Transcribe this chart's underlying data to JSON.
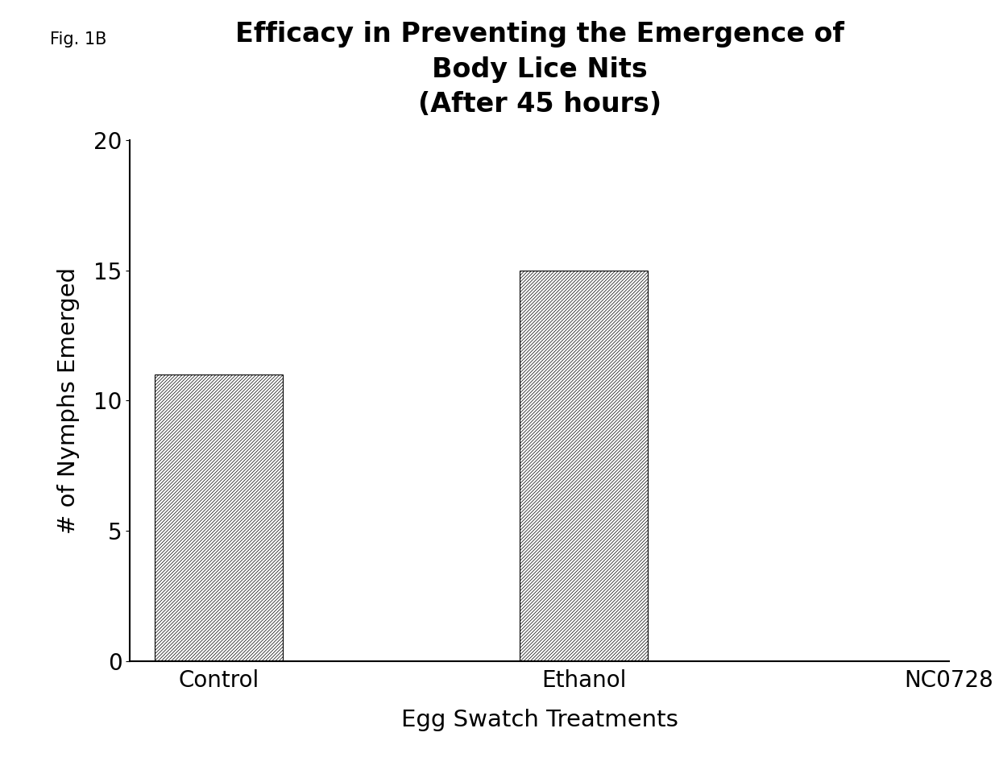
{
  "title_line1": "Efficacy in Preventing the Emergence of",
  "title_line2": "Body Lice Nits",
  "title_line3": "(After 45 hours)",
  "xlabel": "Egg Swatch Treatments",
  "ylabel": "# of Nymphs Emerged",
  "categories": [
    "Control",
    "Ethanol",
    "NC0728"
  ],
  "values": [
    11,
    15,
    0
  ],
  "ylim": [
    0,
    20
  ],
  "yticks": [
    0,
    5,
    10,
    15,
    20
  ],
  "bar_color": "#ffffff",
  "hatch_pattern": "////////",
  "bar_width": 0.35,
  "fig_label": "Fig. 1B",
  "background_color": "#ffffff",
  "title_fontsize": 24,
  "axis_label_fontsize": 21,
  "tick_fontsize": 20,
  "fig_label_fontsize": 15
}
